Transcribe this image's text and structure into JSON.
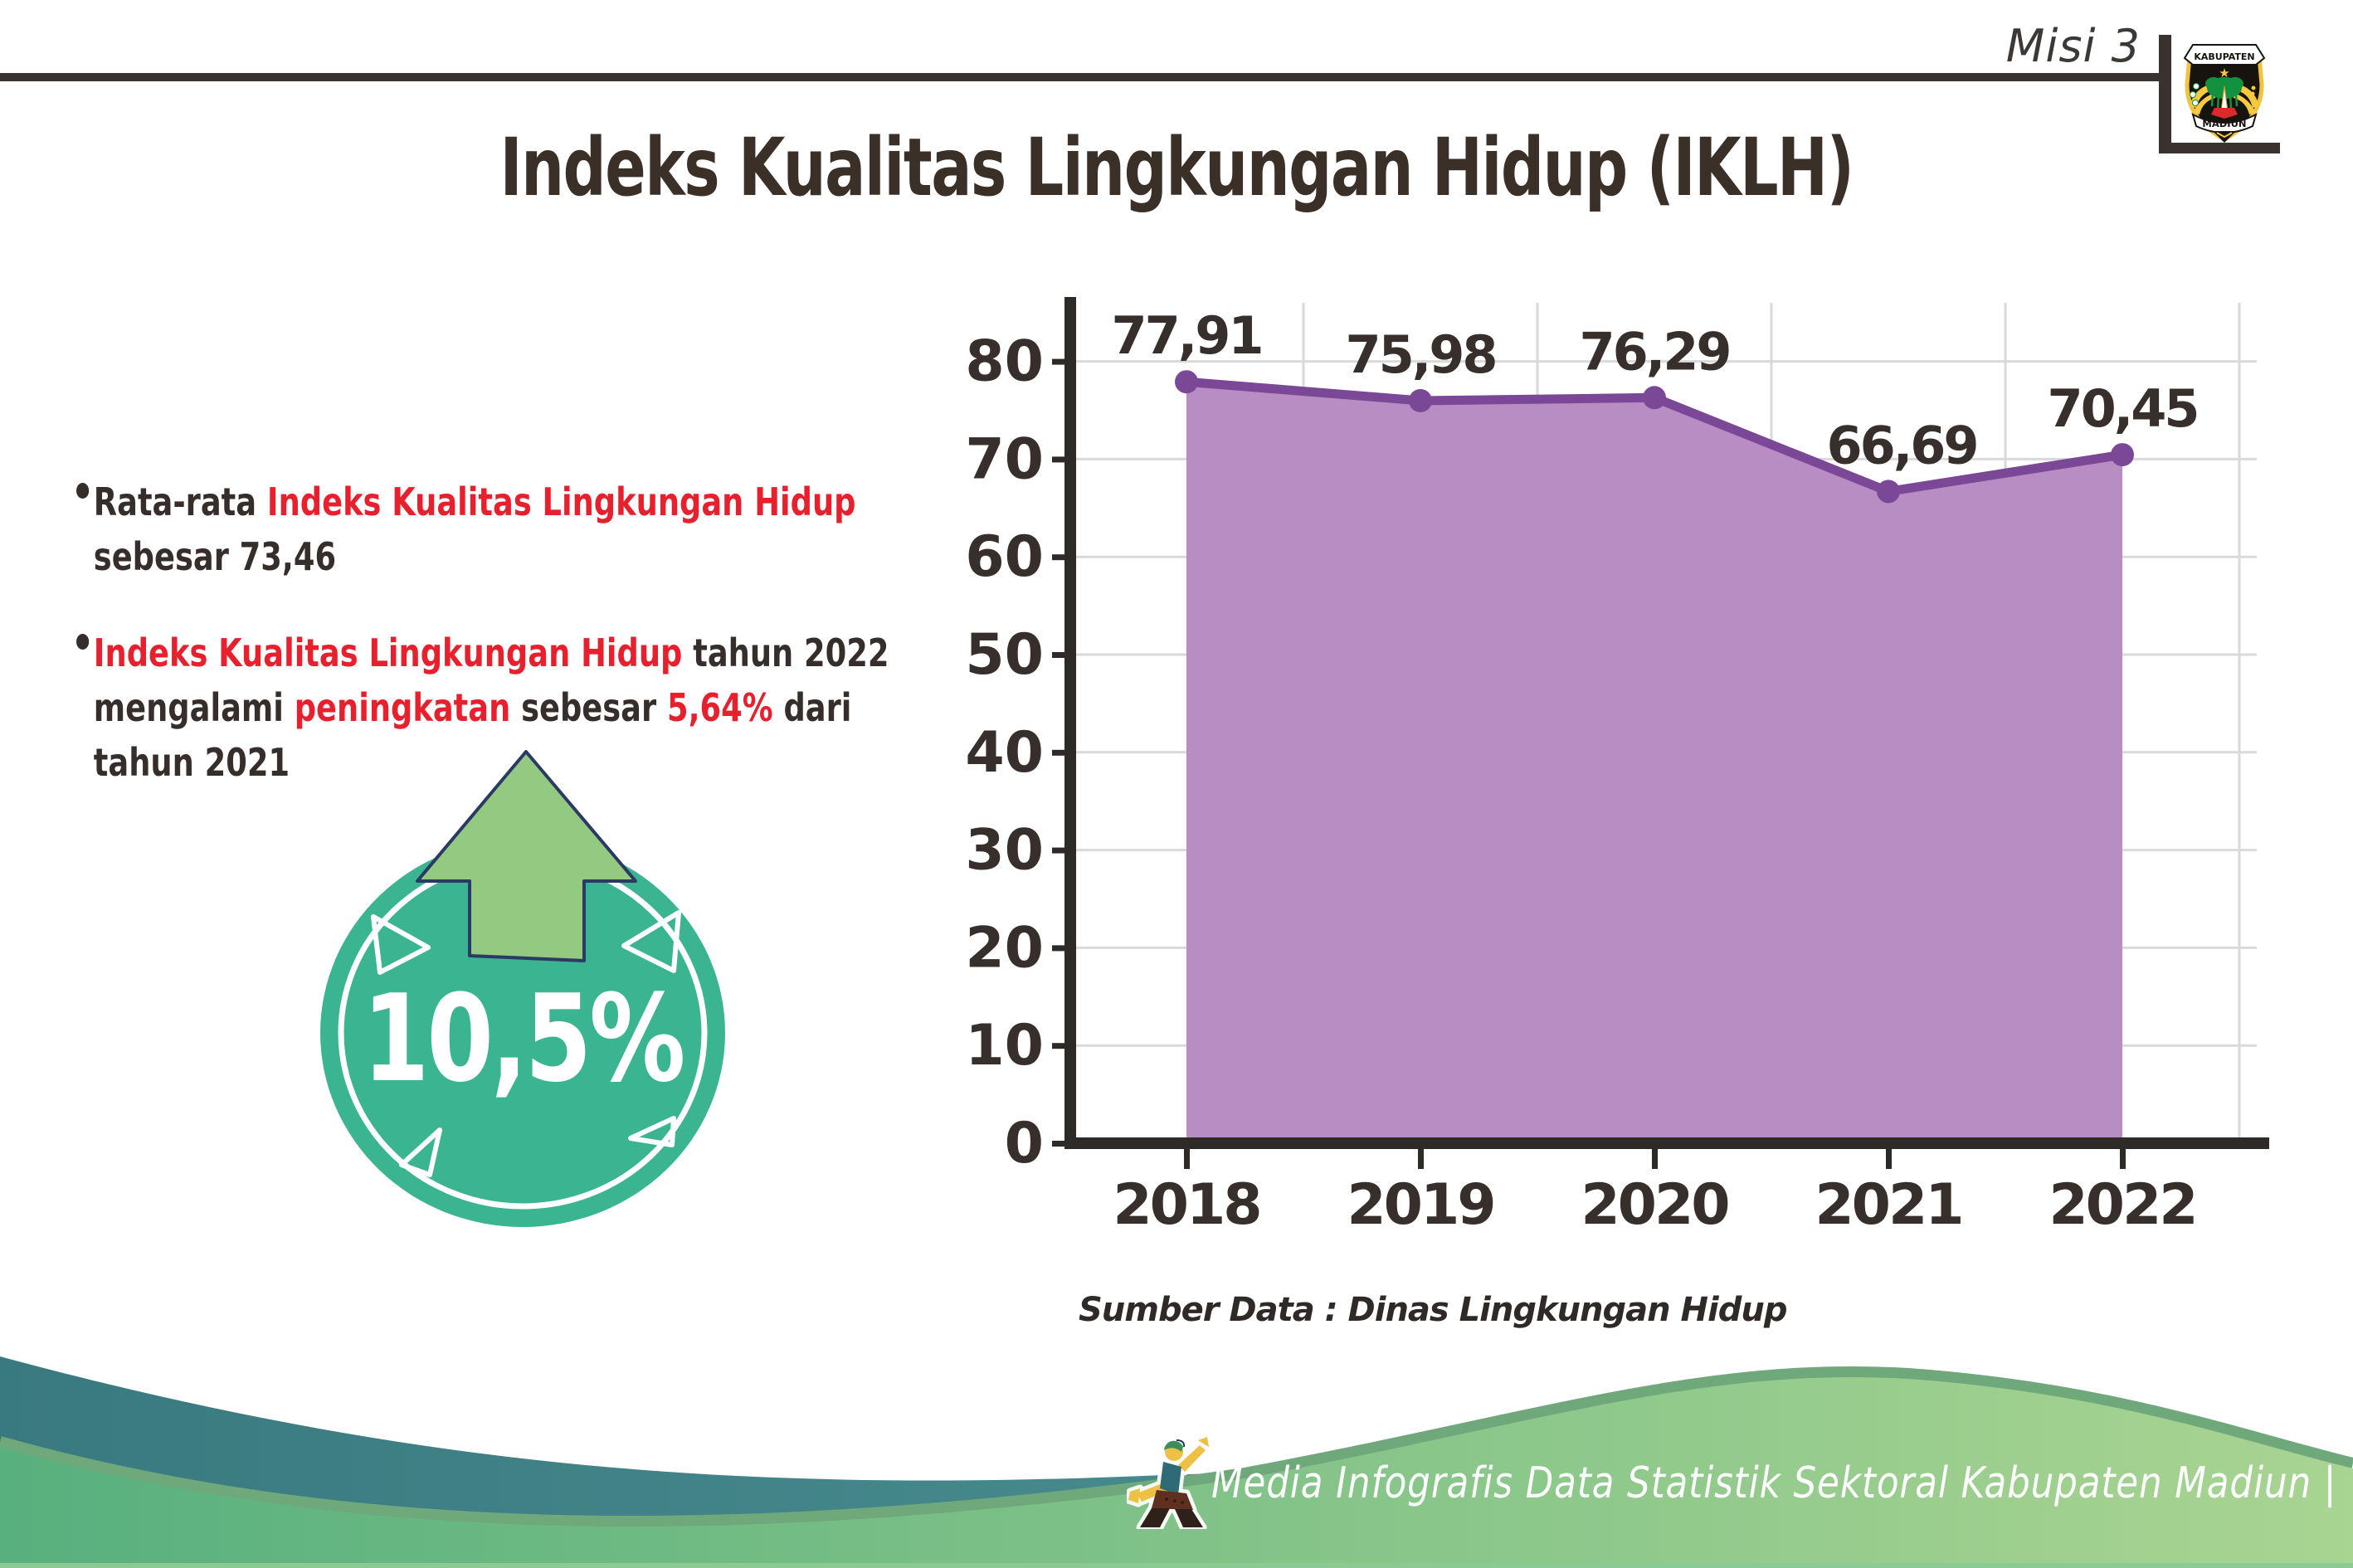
{
  "header": {
    "misi_label": "Misi 3",
    "title": "Indeks Kualitas Lingkungan Hidup (IKLH)"
  },
  "logo": {
    "top_banner": "KABUPATEN",
    "bottom_banner": "MADIUN"
  },
  "bullets": {
    "b1": {
      "l1s1": "Rata-rata ",
      "l1s2": "Indeks Kualitas Lingkungan Hidup",
      "l2": "sebesar 73,46"
    },
    "b2": {
      "l1s1": "Indeks Kualitas Lingkungan Hidup",
      "l1s2": " tahun 2022",
      "l2s1": "mengalami ",
      "l2s2": "peningkatan",
      "l2s3": " sebesar ",
      "l2s4": "5,64%",
      "l2s5": " dari",
      "l3": "tahun 2021"
    }
  },
  "badge": {
    "value": "10,5%"
  },
  "chart_data": {
    "type": "area",
    "categories": [
      "2018",
      "2019",
      "2020",
      "2021",
      "2022"
    ],
    "values": [
      77.91,
      75.98,
      76.29,
      66.69,
      70.45
    ],
    "point_labels": [
      "77,91",
      "75,98",
      "76,29",
      "66,69",
      "70,45"
    ],
    "y_ticks": [
      0,
      10,
      20,
      30,
      40,
      50,
      60,
      70,
      80
    ],
    "ylim": [
      0,
      85
    ],
    "grid": true,
    "legend": "none",
    "xlabel": "",
    "ylabel": "",
    "source": "Sumber Data : Dinas Lingkungan Hidup",
    "colors": {
      "area": "#b88dc4",
      "line": "#7b4897",
      "point": "#7b4897",
      "grid": "#d9d9d9",
      "axis": "#2e2a27",
      "label": "#362f2b"
    }
  },
  "footer": {
    "credit": "Media Infografis Data Statistik Sektoral Kabupaten Madiun |"
  },
  "colors": {
    "text_dark": "#362e2b",
    "accent_red": "#e8202e",
    "badge_teal": "#3bb492",
    "arrow_green": "#93c981",
    "arrow_outline_navy": "#2b3a63",
    "rule_dark": "#3a322e",
    "footer_teal": "#3d7f85",
    "footer_green_left": "#58b07e",
    "footer_green_right": "#a9d492"
  }
}
